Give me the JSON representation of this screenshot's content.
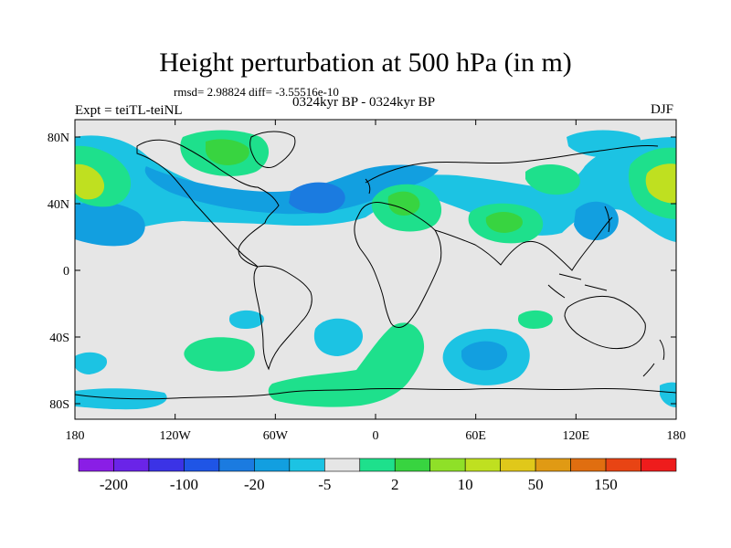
{
  "title": "Height perturbation at 500 hPa (in m)",
  "stats": "rmsd= 2.98824 diff= -3.55516e-10",
  "expt": "Expt = teiTL-teiNL",
  "period": "0324kyr BP - 0324kyr BP",
  "season": "DJF",
  "lat_labels": [
    "80N",
    "40N",
    "0",
    "40S",
    "80S"
  ],
  "lon_labels": [
    "180",
    "120W",
    "60W",
    "0",
    "60E",
    "120E",
    "180"
  ],
  "colorbar": {
    "labels": [
      "-200",
      "-100",
      "-20",
      "-5",
      "2",
      "10",
      "50",
      "150"
    ],
    "colors": [
      "#8a1ee6",
      "#6a24e8",
      "#3b33e6",
      "#1f55e6",
      "#1b7be0",
      "#129fe0",
      "#1cc3e3",
      "#e6e6e6",
      "#1ee08c",
      "#38d440",
      "#8fe028",
      "#bfe020",
      "#e0c81a",
      "#e09a14",
      "#e06e10",
      "#e84414",
      "#ee1c1c"
    ]
  },
  "map_colors": {
    "neutral": "#e6e6e6",
    "light_blue": "#1cc3e3",
    "mid_blue": "#129fe0",
    "dark_blue": "#1b7be0",
    "light_green": "#1ee08c",
    "green": "#38d440",
    "yellow_green": "#bfe020"
  }
}
